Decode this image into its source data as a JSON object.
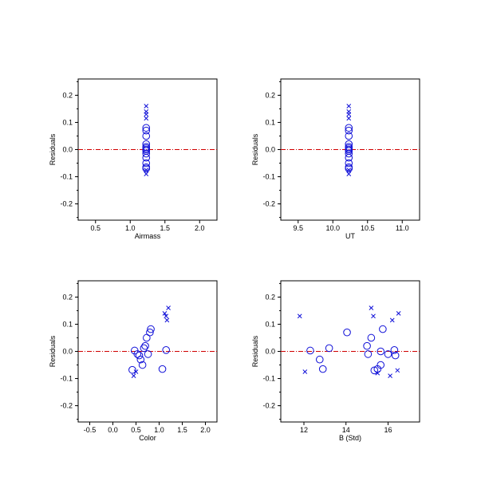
{
  "colors": {
    "points": "#1010d8",
    "reference_line": "#d00000",
    "axes": "#000000"
  },
  "chart_data": [
    {
      "type": "scatter",
      "xlabel": "Airmass",
      "ylabel": "Residuals",
      "xlim": [
        0.25,
        2.25
      ],
      "ylim": [
        -0.26,
        0.26
      ],
      "xticks": [
        0.5,
        1.0,
        1.5,
        2.0
      ],
      "xticklabels": [
        "0.5",
        "1.0",
        "1.5",
        "2.0"
      ],
      "yticks": [
        -0.2,
        -0.1,
        0.0,
        0.1,
        0.2
      ],
      "yticklabels": [
        "-0.2",
        "-0.1",
        "0.0",
        "0.1",
        "0.2"
      ],
      "reference_y": 0.0,
      "series": [
        {
          "marker": "circle",
          "points": [
            [
              1.23,
              0.08
            ],
            [
              1.23,
              0.07
            ],
            [
              1.23,
              0.05
            ],
            [
              1.23,
              0.02
            ],
            [
              1.23,
              0.01
            ],
            [
              1.23,
              0.005
            ],
            [
              1.23,
              0.0
            ],
            [
              1.23,
              -0.005
            ],
            [
              1.23,
              -0.015
            ],
            [
              1.23,
              -0.03
            ],
            [
              1.23,
              -0.05
            ],
            [
              1.23,
              -0.065
            ],
            [
              1.23,
              -0.07
            ]
          ]
        },
        {
          "marker": "cross",
          "points": [
            [
              1.23,
              0.16
            ],
            [
              1.23,
              0.14
            ],
            [
              1.23,
              0.13
            ],
            [
              1.23,
              0.115
            ],
            [
              1.23,
              -0.075
            ],
            [
              1.23,
              -0.09
            ]
          ]
        }
      ]
    },
    {
      "type": "scatter",
      "xlabel": "UT",
      "ylabel": "Residuals",
      "xlim": [
        9.25,
        11.25
      ],
      "ylim": [
        -0.26,
        0.26
      ],
      "xticks": [
        9.5,
        10.0,
        10.5,
        11.0
      ],
      "xticklabels": [
        "9.5",
        "10.0",
        "10.5",
        "11.0"
      ],
      "yticks": [
        -0.2,
        -0.1,
        0.0,
        0.1,
        0.2
      ],
      "yticklabels": [
        "-0.2",
        "-0.1",
        "0.0",
        "0.1",
        "0.2"
      ],
      "reference_y": 0.0,
      "series": [
        {
          "marker": "circle",
          "points": [
            [
              10.23,
              0.08
            ],
            [
              10.23,
              0.07
            ],
            [
              10.23,
              0.05
            ],
            [
              10.23,
              0.02
            ],
            [
              10.23,
              0.01
            ],
            [
              10.23,
              0.005
            ],
            [
              10.23,
              0.0
            ],
            [
              10.23,
              -0.005
            ],
            [
              10.23,
              -0.015
            ],
            [
              10.23,
              -0.03
            ],
            [
              10.23,
              -0.05
            ],
            [
              10.23,
              -0.065
            ],
            [
              10.23,
              -0.07
            ]
          ]
        },
        {
          "marker": "cross",
          "points": [
            [
              10.23,
              0.16
            ],
            [
              10.23,
              0.14
            ],
            [
              10.23,
              0.13
            ],
            [
              10.23,
              0.115
            ],
            [
              10.23,
              -0.075
            ],
            [
              10.23,
              -0.09
            ]
          ]
        }
      ]
    },
    {
      "type": "scatter",
      "xlabel": "Color",
      "ylabel": "Residuals",
      "xlim": [
        -0.75,
        2.25
      ],
      "ylim": [
        -0.26,
        0.26
      ],
      "xticks": [
        -0.5,
        0.0,
        0.5,
        1.0,
        1.5,
        2.0
      ],
      "xticklabels": [
        "-0.5",
        "0.0",
        "0.5",
        "1.0",
        "1.5",
        "2.0"
      ],
      "yticks": [
        -0.2,
        -0.1,
        0.0,
        0.1,
        0.2
      ],
      "yticklabels": [
        "-0.2",
        "-0.1",
        "0.0",
        "0.1",
        "0.2"
      ],
      "reference_y": 0.0,
      "series": [
        {
          "marker": "circle",
          "points": [
            [
              0.42,
              -0.068
            ],
            [
              0.47,
              0.003
            ],
            [
              0.53,
              -0.01
            ],
            [
              0.57,
              -0.015
            ],
            [
              0.6,
              -0.03
            ],
            [
              0.64,
              -0.05
            ],
            [
              0.67,
              0.012
            ],
            [
              0.7,
              0.02
            ],
            [
              0.73,
              0.05
            ],
            [
              0.76,
              -0.01
            ],
            [
              0.8,
              0.07
            ],
            [
              0.82,
              0.082
            ],
            [
              1.07,
              -0.065
            ],
            [
              1.15,
              0.005
            ]
          ]
        },
        {
          "marker": "cross",
          "points": [
            [
              0.45,
              -0.09
            ],
            [
              0.5,
              -0.075
            ],
            [
              1.12,
              0.14
            ],
            [
              1.15,
              0.13
            ],
            [
              1.17,
              0.115
            ],
            [
              1.2,
              0.16
            ]
          ]
        }
      ]
    },
    {
      "type": "scatter",
      "xlabel": "B (Std)",
      "ylabel": "Residuals",
      "xlim": [
        10.9,
        17.5
      ],
      "ylim": [
        -0.26,
        0.26
      ],
      "xticks": [
        12,
        14,
        16
      ],
      "xticklabels": [
        "12",
        "14",
        "16"
      ],
      "yticks": [
        -0.2,
        -0.1,
        0.0,
        0.1,
        0.2
      ],
      "yticklabels": [
        "-0.2",
        "-0.1",
        "0.0",
        "0.1",
        "0.2"
      ],
      "reference_y": 0.0,
      "series": [
        {
          "marker": "circle",
          "points": [
            [
              12.3,
              0.003
            ],
            [
              12.75,
              -0.03
            ],
            [
              12.9,
              -0.065
            ],
            [
              13.2,
              0.012
            ],
            [
              14.05,
              0.07
            ],
            [
              15.0,
              0.02
            ],
            [
              15.05,
              -0.01
            ],
            [
              15.2,
              0.05
            ],
            [
              15.35,
              -0.07
            ],
            [
              15.5,
              -0.065
            ],
            [
              15.65,
              -0.05
            ],
            [
              15.65,
              0.0
            ],
            [
              15.75,
              0.082
            ],
            [
              16.0,
              -0.01
            ],
            [
              16.3,
              0.005
            ],
            [
              16.35,
              -0.015
            ]
          ]
        },
        {
          "marker": "cross",
          "points": [
            [
              11.8,
              0.13
            ],
            [
              12.05,
              -0.075
            ],
            [
              15.2,
              0.16
            ],
            [
              15.3,
              0.13
            ],
            [
              15.5,
              -0.08
            ],
            [
              16.1,
              -0.09
            ],
            [
              16.2,
              0.115
            ],
            [
              16.45,
              -0.07
            ],
            [
              16.5,
              0.14
            ]
          ]
        }
      ]
    }
  ]
}
